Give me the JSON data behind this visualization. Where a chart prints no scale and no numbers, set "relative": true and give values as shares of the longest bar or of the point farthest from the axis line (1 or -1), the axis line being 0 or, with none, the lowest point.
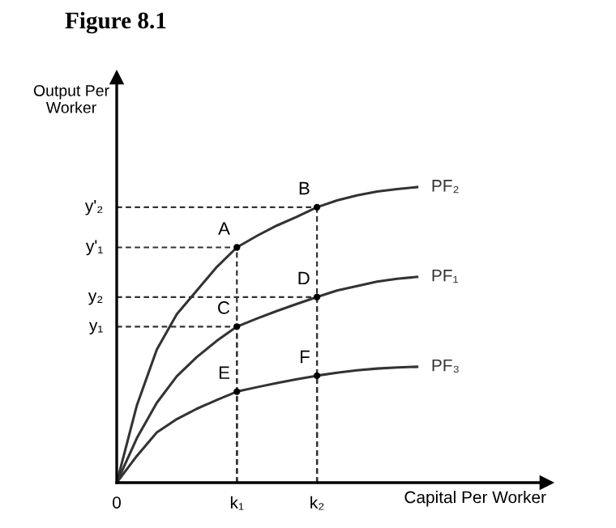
{
  "chart_data": {
    "type": "line",
    "title": "Figure 8.1",
    "xlabel": "Capital Per Worker",
    "ylabel": "Output Per\nWorker",
    "relative": true,
    "categories": [
      "0",
      null,
      null,
      null,
      null,
      null,
      "k₁",
      null,
      null,
      null,
      "k₂",
      null,
      null,
      null,
      null,
      null
    ],
    "series": [
      {
        "name": "PF₂",
        "color": "#333333",
        "values": [
          0,
          0.26,
          0.45,
          0.57,
          0.65,
          0.73,
          0.796,
          0.835,
          0.87,
          0.9,
          0.932,
          0.955,
          0.972,
          0.985,
          0.993,
          1.0
        ]
      },
      {
        "name": "PF₁",
        "color": "#333333",
        "values": [
          0,
          0.15,
          0.27,
          0.36,
          0.425,
          0.48,
          0.528,
          0.555,
          0.581,
          0.605,
          0.628,
          0.65,
          0.665,
          0.68,
          0.69,
          0.696
        ]
      },
      {
        "name": "PF₃",
        "color": "#333333",
        "values": [
          0,
          0.09,
          0.17,
          0.215,
          0.25,
          0.28,
          0.308,
          0.323,
          0.337,
          0.35,
          0.362,
          0.372,
          0.38,
          0.386,
          0.39,
          0.392
        ]
      },
      {
        "color": "#333333",
        "line_style": "dashed",
        "values": [
          0.932,
          0.932,
          0.932,
          0.932,
          0.932,
          0.932,
          0.932,
          0.932,
          0.932,
          0.932,
          0.932,
          null,
          null,
          null,
          null,
          null
        ]
      },
      {
        "color": "#333333",
        "line_style": "dashed",
        "values": [
          0.796,
          0.796,
          0.796,
          0.796,
          0.796,
          0.796,
          0.796,
          null,
          null,
          null,
          null,
          null,
          null,
          null,
          null,
          null
        ]
      },
      {
        "color": "#333333",
        "line_style": "dashed",
        "values": [
          0.628,
          0.628,
          0.628,
          0.628,
          0.628,
          0.628,
          0.628,
          0.628,
          0.628,
          0.628,
          0.628,
          null,
          null,
          null,
          null,
          null
        ]
      },
      {
        "color": "#333333",
        "line_style": "dashed",
        "values": [
          0.528,
          0.528,
          0.528,
          0.528,
          0.528,
          0.528,
          0.528,
          null,
          null,
          null,
          null,
          null,
          null,
          null,
          null,
          null
        ]
      }
    ],
    "annotations": [
      {
        "text": "A",
        "x": "k₁",
        "y": 0.796
      },
      {
        "text": "B",
        "x": "k₂",
        "y": 0.932
      },
      {
        "text": "C",
        "x": "k₁",
        "y": 0.528
      },
      {
        "text": "D",
        "x": "k₂",
        "y": 0.628
      },
      {
        "text": "E",
        "x": "k₁",
        "y": 0.308
      },
      {
        "text": "F",
        "x": "k₂",
        "y": 0.362
      },
      {
        "text": "y'₂",
        "x": "0",
        "y": 0.932
      },
      {
        "text": "y'₁",
        "x": "0",
        "y": 0.796
      },
      {
        "text": "y₂",
        "x": "0",
        "y": 0.628
      },
      {
        "text": "y₁",
        "x": "0",
        "y": 0.528
      }
    ],
    "legend": false
  }
}
